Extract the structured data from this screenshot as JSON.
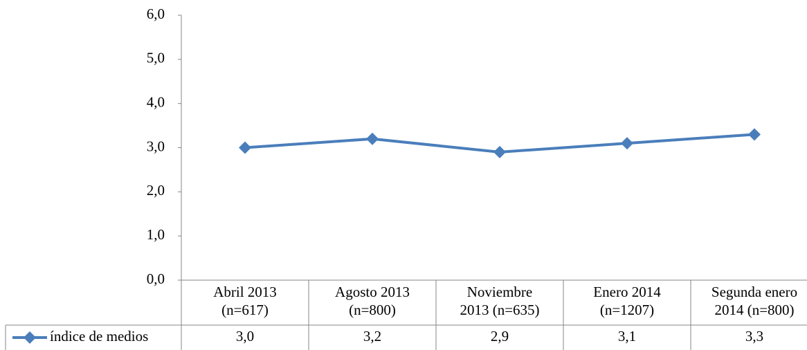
{
  "chart_data": {
    "type": "line",
    "categories": [
      "Abril 2013\n(n=617)",
      "Agosto 2013\n(n=800)",
      "Noviembre\n2013 (n=635)",
      "Enero 2014\n(n=1207)",
      "Segunda enero\n2014 (n=800)"
    ],
    "series": [
      {
        "name": "índice de medios",
        "color": "#4a7ebb",
        "values": [
          3.0,
          3.2,
          2.9,
          3.1,
          3.3
        ],
        "value_labels": [
          "3,0",
          "3,2",
          "2,9",
          "3,1",
          "3,3"
        ]
      }
    ],
    "ylim": [
      0,
      6
    ],
    "yticks": [
      {
        "value": 0,
        "label": "0,0"
      },
      {
        "value": 1,
        "label": "1,0"
      },
      {
        "value": 2,
        "label": "2,0"
      },
      {
        "value": 3,
        "label": "3,0"
      },
      {
        "value": 4,
        "label": "4,0"
      },
      {
        "value": 5,
        "label": "5,0"
      },
      {
        "value": 6,
        "label": "6,0"
      }
    ],
    "grid": false
  }
}
